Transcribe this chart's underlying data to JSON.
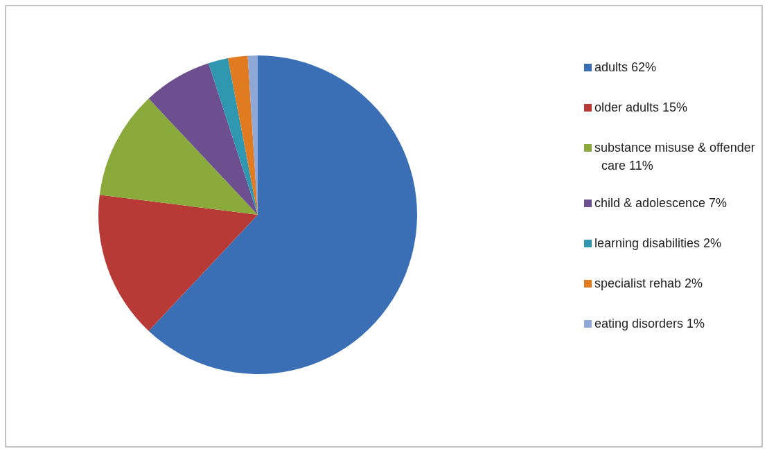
{
  "chart_data": {
    "type": "pie",
    "categories": [
      "adults 62%",
      "older adults 15%",
      "substance misuse & offender care 11%",
      "child & adolescence 7%",
      "learning disabilities 2%",
      "specialist rehab 2%",
      "eating disorders 1%"
    ],
    "values": [
      62,
      15,
      11,
      7,
      2,
      2,
      1
    ],
    "colors": [
      "#3a6fb5",
      "#b83a37",
      "#8aaa3c",
      "#6d4e8e",
      "#2f98b0",
      "#e07b22",
      "#8ea9d8"
    ],
    "legend": "right"
  }
}
